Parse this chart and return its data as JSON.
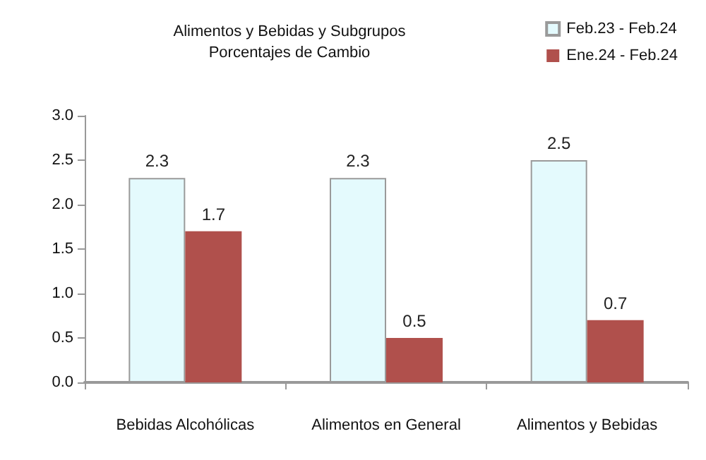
{
  "chart_data": {
    "type": "bar",
    "title": "Alimentos y Bebidas y Subgrupos",
    "subtitle": "Porcentajes de Cambio",
    "categories": [
      "Bebidas Alcohólicas",
      "Alimentos en General",
      "Alimentos y Bebidas"
    ],
    "series": [
      {
        "name": "Feb.23 - Feb.24",
        "color": "#e4fafd",
        "values": [
          2.3,
          2.3,
          2.5
        ]
      },
      {
        "name": "Ene.24 - Feb.24",
        "color": "#b0504c",
        "values": [
          1.7,
          0.5,
          0.7
        ]
      }
    ],
    "ylim": [
      0,
      3
    ],
    "yticks": [
      {
        "value": 0,
        "label": "0.0"
      },
      0.5,
      {
        "value": 1,
        "label": "1.0"
      },
      1.5,
      {
        "value": 2,
        "label": "2.0"
      },
      2.5,
      {
        "value": 3,
        "label": "3.0"
      }
    ],
    "grid": false,
    "legend": "top right",
    "data_labels": true
  }
}
